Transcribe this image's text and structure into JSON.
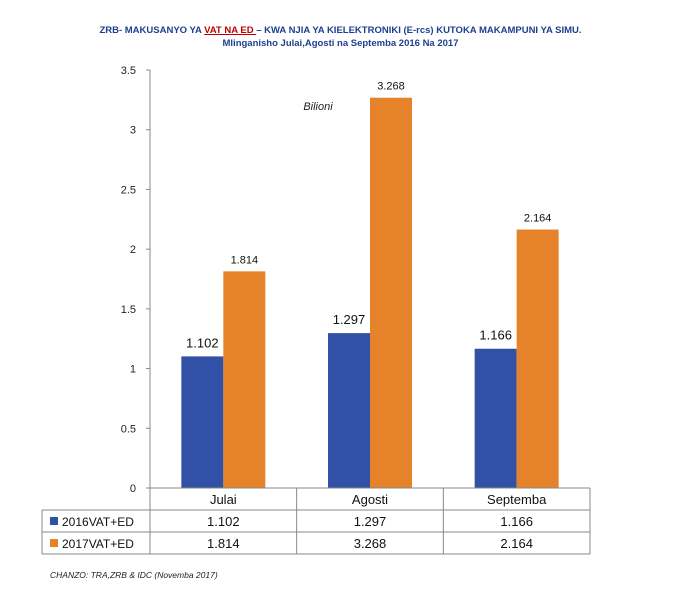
{
  "chart_data": {
    "type": "bar",
    "title_part1": "ZRB- MAKUSANYO YA ",
    "title_highlight": "VAT NA ED ",
    "title_part2": "– KWA NJIA YA KIELEKTRONIKI (E-rcs) KUTOKA MAKAMPUNI YA SIMU.",
    "subtitle": "Mlinganisho Julai,Agosti na Septemba 2016 Na 2017",
    "unit_annotation": "Bilioni",
    "categories": [
      "Julai",
      "Agosti",
      "Septemba"
    ],
    "series": [
      {
        "name": "2016VAT+ED",
        "values": [
          1.102,
          1.297,
          1.166
        ],
        "labels": [
          "1.102",
          "1.297",
          "1.166"
        ],
        "color": "#3051a6"
      },
      {
        "name": "2017VAT+ED",
        "values": [
          1.814,
          3.268,
          2.164
        ],
        "labels": [
          "1.814",
          "3.268",
          "2.164"
        ],
        "color": "#e6822a"
      }
    ],
    "ylim": [
      0,
      3.5
    ],
    "yticks": [
      "0",
      "0.5",
      "1",
      "1.5",
      "2",
      "2.5",
      "3",
      "3.5"
    ],
    "data_table": true,
    "source": "CHANZO: TRA,ZRB & IDC (Novemba 2017)"
  }
}
